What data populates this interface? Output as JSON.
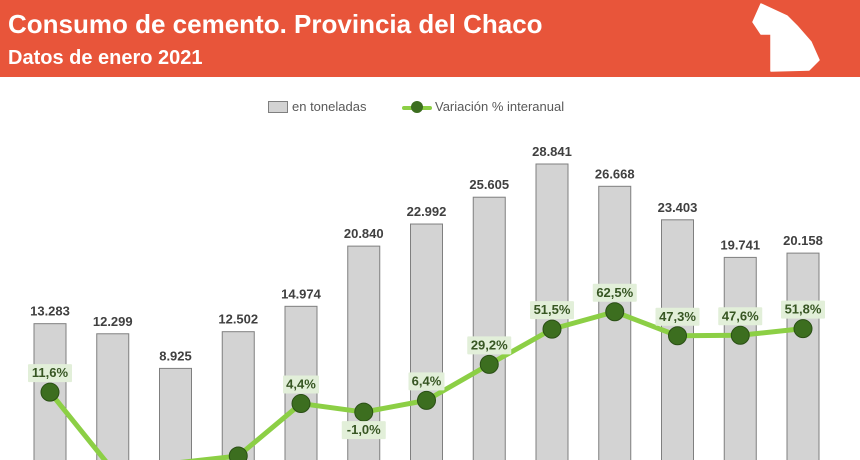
{
  "header": {
    "title": "Consumo de cemento. Provincia del Chaco",
    "subtitle": "Datos de enero 2021",
    "map_icon": "chaco-province-map-icon"
  },
  "colors": {
    "header_bg": "#e8553a",
    "bar_fill": "#d3d3d3",
    "bar_stroke": "#7f7f7f",
    "line": "#8ccf45",
    "marker": "#3c6e1f",
    "pct_label_bg": "#e2efd9",
    "pct_label_text": "#375623",
    "value_label": "#404040"
  },
  "legend": {
    "bars_label": "en toneladas",
    "line_label": "Variación % interanual"
  },
  "chart_data": {
    "type": "bar",
    "series": [
      {
        "name": "en toneladas",
        "type": "bar",
        "values": [
          13283,
          12299,
          8925,
          12502,
          14974,
          20840,
          22992,
          25605,
          28841,
          26668,
          23403,
          19741,
          20158
        ],
        "labels": [
          "13.283",
          "12.299",
          "8.925",
          "12.502",
          "14.974",
          "20.840",
          "22.992",
          "25.605",
          "28.841",
          "26.668",
          "23.403",
          "19.741",
          "20.158"
        ]
      },
      {
        "name": "Variación % interanual",
        "type": "line",
        "values": [
          11.6,
          null,
          null,
          null,
          4.4,
          -1.0,
          6.4,
          29.2,
          51.5,
          62.5,
          47.3,
          47.6,
          51.8
        ],
        "labels": [
          "11,6%",
          "",
          "",
          "",
          "4,4%",
          "-1,0%",
          "6,4%",
          "29,2%",
          "51,5%",
          "62,5%",
          "47,3%",
          "47,6%",
          "51,8%"
        ]
      }
    ],
    "grid": false,
    "legend_position": "top"
  }
}
